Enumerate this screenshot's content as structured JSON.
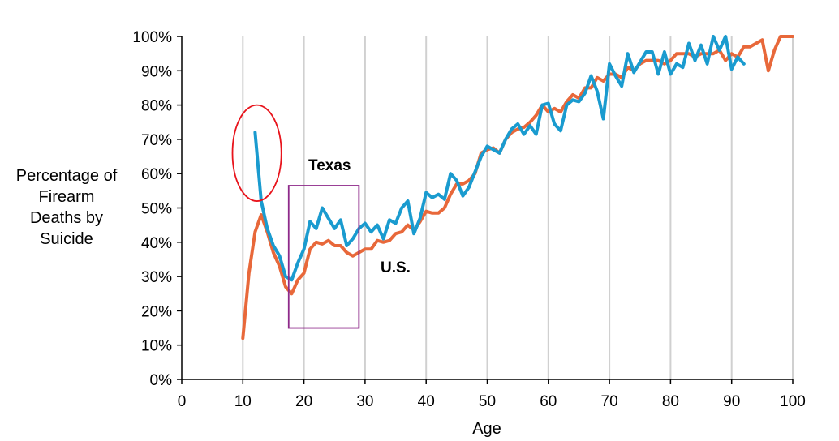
{
  "chart_data": {
    "type": "line",
    "title": "",
    "xlabel": "Age",
    "ylabel_lines": [
      "Percentage of",
      "Firearm",
      "Deaths by",
      "Suicide"
    ],
    "xlim": [
      0,
      100
    ],
    "ylim": [
      0,
      100
    ],
    "x_ticks": [
      0,
      10,
      20,
      30,
      40,
      50,
      60,
      70,
      80,
      90,
      100
    ],
    "y_ticks": [
      "0%",
      "10%",
      "20%",
      "30%",
      "40%",
      "50%",
      "60%",
      "70%",
      "80%",
      "90%",
      "100%"
    ],
    "grid": "vertical",
    "series": [
      {
        "name": "U.S.",
        "color": "#E8683A",
        "x": [
          10,
          11,
          12,
          13,
          14,
          15,
          16,
          17,
          18,
          19,
          20,
          21,
          22,
          23,
          24,
          25,
          26,
          27,
          28,
          29,
          30,
          31,
          32,
          33,
          34,
          35,
          36,
          37,
          38,
          39,
          40,
          41,
          42,
          43,
          44,
          45,
          46,
          47,
          48,
          49,
          50,
          51,
          52,
          53,
          54,
          55,
          56,
          57,
          58,
          59,
          60,
          61,
          62,
          63,
          64,
          65,
          66,
          67,
          68,
          69,
          70,
          71,
          72,
          73,
          74,
          75,
          76,
          77,
          78,
          79,
          80,
          81,
          82,
          83,
          84,
          85,
          86,
          87,
          88,
          89,
          90,
          91,
          92,
          93,
          94,
          95,
          96,
          97,
          98,
          99,
          100
        ],
        "values": [
          12,
          31,
          43,
          48,
          43,
          37,
          33,
          27,
          25,
          29,
          31,
          38,
          40,
          39.5,
          40.5,
          39,
          39,
          37,
          36,
          37,
          38,
          38,
          40.5,
          40,
          40.5,
          42.5,
          43,
          45,
          43.5,
          46,
          49,
          48.5,
          48.5,
          50,
          54,
          57,
          57,
          58,
          60,
          66,
          67,
          67.5,
          66,
          70,
          72,
          73,
          73.5,
          75,
          77,
          80,
          78,
          79,
          78,
          81,
          83,
          82,
          85,
          85,
          88,
          87,
          89,
          89,
          88,
          91,
          90,
          92,
          93,
          93,
          93,
          92,
          93,
          95,
          95,
          95,
          94,
          95,
          95,
          95,
          96,
          93,
          95,
          94,
          97,
          97,
          98,
          99,
          90,
          96,
          100,
          100,
          100
        ]
      },
      {
        "name": "Texas",
        "color": "#1A9BCF",
        "x": [
          12,
          13,
          14,
          15,
          16,
          17,
          18,
          19,
          20,
          21,
          22,
          23,
          24,
          25,
          26,
          27,
          28,
          29,
          30,
          31,
          32,
          33,
          34,
          35,
          36,
          37,
          38,
          39,
          40,
          41,
          42,
          43,
          44,
          45,
          46,
          47,
          48,
          49,
          50,
          51,
          52,
          53,
          54,
          55,
          56,
          57,
          58,
          59,
          60,
          61,
          62,
          63,
          64,
          65,
          66,
          67,
          68,
          69,
          70,
          71,
          72,
          73,
          74,
          75,
          76,
          77,
          78,
          79,
          80,
          81,
          82,
          83,
          84,
          85,
          86,
          87,
          88,
          89,
          90,
          91,
          92
        ],
        "values": [
          72,
          52,
          44,
          39,
          36,
          30,
          29,
          34,
          38,
          46,
          44,
          50,
          47,
          44,
          46.5,
          39,
          41,
          44,
          45.5,
          43,
          45,
          41,
          46.5,
          45.5,
          50,
          52,
          42.5,
          47,
          54.5,
          53,
          54,
          52.5,
          60,
          58,
          53.5,
          56,
          60.5,
          65,
          68,
          67,
          66,
          70,
          73,
          74.5,
          71.5,
          74,
          71.5,
          80,
          80.5,
          74.5,
          72.5,
          80,
          81.5,
          81,
          83.5,
          88.5,
          84,
          76,
          92,
          88.5,
          85.5,
          95,
          89.5,
          92.5,
          95.5,
          95.5,
          89,
          95.5,
          89,
          92,
          91,
          98,
          93,
          97.5,
          92,
          100,
          96,
          100,
          90.5,
          94,
          92
        ]
      }
    ],
    "annotations": {
      "texas_label": "Texas",
      "us_label": "U.S.",
      "red_circle": {
        "x_center": 12.3,
        "y_center": 66,
        "x_radius": 4,
        "y_radius": 14
      },
      "purple_box": {
        "x_min": 17.5,
        "x_max": 29,
        "y_min": 15,
        "y_max": 56.5
      }
    }
  }
}
